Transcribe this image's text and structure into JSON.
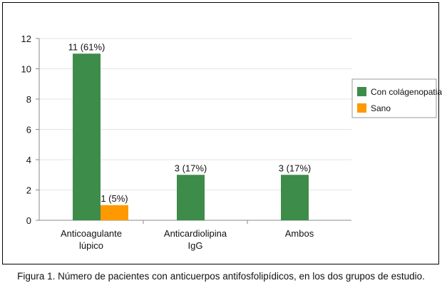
{
  "caption": "Figura 1. Número de pacientes con anticuerpos antifosfolipídicos, en los dos grupos de estudio.",
  "chart_data": {
    "type": "bar",
    "categories": [
      [
        "Anticoagulante",
        "lúpico"
      ],
      [
        "Anticardiolipina",
        "IgG"
      ],
      [
        "Ambos"
      ]
    ],
    "series": [
      {
        "name": "Con colágenopatia",
        "color": "#3d8c4a",
        "values": [
          11,
          3,
          3
        ],
        "labels": [
          "11 (61%)",
          "3 (17%)",
          "3 (17%)"
        ]
      },
      {
        "name": "Sano",
        "color": "#ff9900",
        "values": [
          1,
          0,
          0
        ],
        "labels": [
          "1 (5%)",
          "",
          ""
        ]
      }
    ],
    "ylim": [
      0,
      12
    ],
    "yticks": [
      0,
      2,
      4,
      6,
      8,
      10,
      12
    ],
    "grid": true,
    "legend_position": "right"
  }
}
